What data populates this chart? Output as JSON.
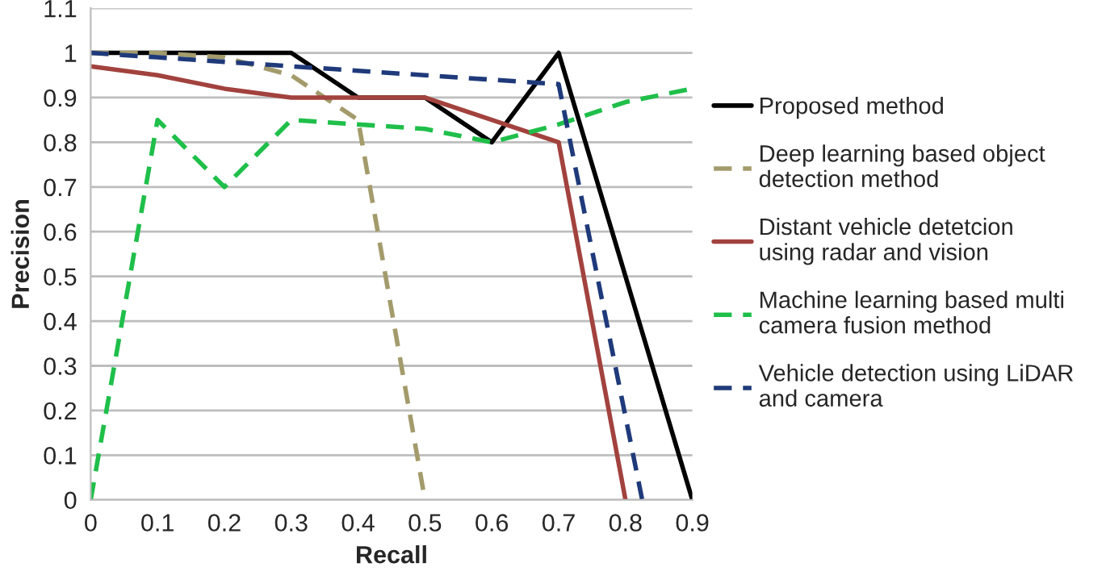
{
  "chart_data": {
    "type": "line",
    "xlabel": "Recall",
    "ylabel": "Precision",
    "xlim": [
      0,
      0.9
    ],
    "xticks": [
      0,
      0.1,
      0.2,
      0.3,
      0.4,
      0.5,
      0.6,
      0.7,
      0.8,
      0.9
    ],
    "ylim": [
      0,
      1.1
    ],
    "yticks": [
      0,
      0.1,
      0.2,
      0.3,
      0.4,
      0.5,
      0.6,
      0.7,
      0.8,
      0.9,
      1,
      1.1
    ],
    "grid": "y",
    "legend": "right",
    "marker": "none",
    "series": [
      {
        "name": "Proposed method",
        "color": "#000000",
        "line_style": "solid",
        "x": [
          0,
          0.3,
          0.4,
          0.5,
          0.6,
          0.7,
          0.9
        ],
        "values": [
          1,
          1,
          0.9,
          0.9,
          0.8,
          1,
          0
        ]
      },
      {
        "name": "Deep learning based object detection method",
        "color": "#a39b6b",
        "line_style": "dashed",
        "x": [
          0,
          0.1,
          0.2,
          0.3,
          0.4,
          0.5
        ],
        "values": [
          1,
          1,
          0.99,
          0.95,
          0.85,
          0
        ]
      },
      {
        "name": "Distant vehicle detetcion using radar and vision",
        "color": "#a2423e",
        "line_style": "solid",
        "x": [
          0,
          0.1,
          0.2,
          0.3,
          0.4,
          0.5,
          0.6,
          0.7,
          0.8
        ],
        "values": [
          0.97,
          0.95,
          0.92,
          0.9,
          0.9,
          0.9,
          0.85,
          0.8,
          0
        ]
      },
      {
        "name": "Machine learning based multi camera fusion method",
        "color": "#1fbf4a",
        "line_style": "dashed",
        "x": [
          0,
          0.1,
          0.2,
          0.3,
          0.4,
          0.5,
          0.6,
          0.7,
          0.8,
          0.9
        ],
        "values": [
          0,
          0.85,
          0.7,
          0.85,
          0.84,
          0.83,
          0.8,
          0.84,
          0.89,
          0.92
        ]
      },
      {
        "name": "Vehicle detection using LiDAR and camera",
        "color": "#1f3a7a",
        "line_style": "dashed",
        "x": [
          0,
          0.1,
          0.2,
          0.3,
          0.4,
          0.5,
          0.6,
          0.7,
          0.825
        ],
        "values": [
          1,
          0.99,
          0.98,
          0.97,
          0.96,
          0.95,
          0.94,
          0.93,
          0
        ]
      }
    ]
  }
}
